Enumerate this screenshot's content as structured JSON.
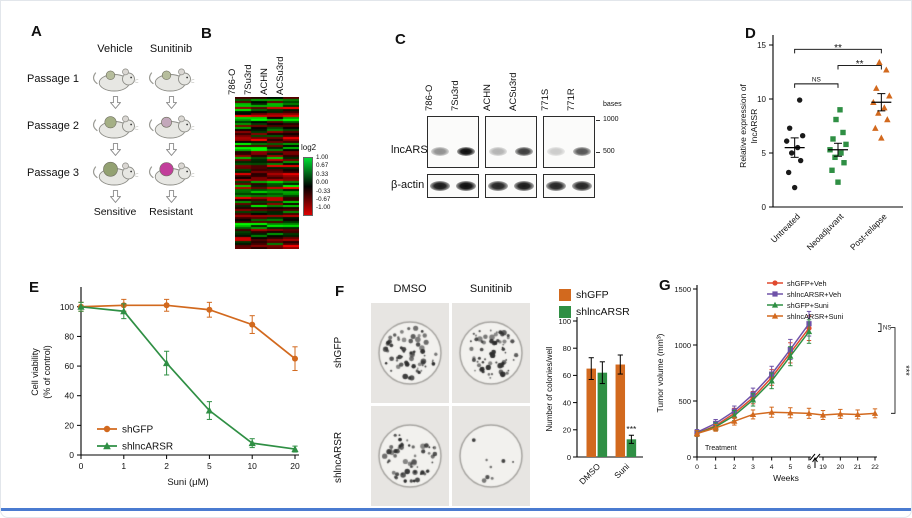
{
  "figure": {
    "accent_color": "#4a7bd0"
  },
  "panels": {
    "A": {
      "label": "A",
      "col_headers": [
        "Vehicle",
        "Sunitinib"
      ],
      "passages": [
        "Passage 1",
        "Passage 2",
        "Passage 3"
      ],
      "footer": [
        "Sensitive",
        "Resistant"
      ],
      "mice": [
        [
          {
            "tumor": "#b6bd9c",
            "size": 3.2
          },
          {
            "tumor": "#b6bd9c",
            "size": 3.2
          }
        ],
        [
          {
            "tumor": "#a4af85",
            "size": 4.2
          },
          {
            "tumor": "#c3a8bb",
            "size": 3.8
          }
        ],
        [
          {
            "tumor": "#93a172",
            "size": 5.2
          },
          {
            "tumor": "#c23e9b",
            "size": 5.0
          }
        ]
      ]
    },
    "B": {
      "label": "B",
      "columns": [
        "786-O",
        "7Su3rd",
        "ACHN",
        "ACSu3rd"
      ],
      "colorbar": {
        "title": "log2",
        "ticks": [
          "1.00",
          "0.67",
          "0.33",
          "0.00",
          "-0.33",
          "-0.67",
          "-1.00"
        ]
      }
    },
    "C": {
      "label": "C",
      "lanes": [
        "786-O",
        "7Su3rd",
        "ACHN",
        "ACSu3rd",
        "771S",
        "771R"
      ],
      "row_labels": [
        "lncARSR",
        "β-actin"
      ],
      "unit_label": "bases",
      "size_markers": [
        "1000",
        "500"
      ],
      "lncARSR_bands": [
        0.45,
        1.0,
        0.3,
        0.8,
        0.2,
        0.7
      ],
      "actin_bands": [
        0.95,
        1.0,
        0.9,
        0.95,
        0.9,
        0.9
      ]
    },
    "D": {
      "label": "D"
    },
    "E": {
      "label": "E"
    },
    "F": {
      "label": "F",
      "col_headers": [
        "DMSO",
        "Sunitinib"
      ],
      "row_labels": [
        "shGFP",
        "shlncARSR"
      ],
      "wells": [
        {
          "row": 0,
          "col": 0,
          "colonies": 62,
          "seed": 7
        },
        {
          "row": 0,
          "col": 1,
          "colonies": 66,
          "seed": 19
        },
        {
          "row": 1,
          "col": 0,
          "colonies": 58,
          "seed": 31
        },
        {
          "row": 1,
          "col": 1,
          "colonies": 8,
          "seed": 43
        }
      ]
    },
    "G": {
      "label": "G"
    }
  },
  "chart_data": [
    {
      "panel": "B",
      "type": "heatmap",
      "columns": [
        "786-O",
        "7Su3rd",
        "ACHN",
        "ACSu3rd"
      ],
      "rows": 76,
      "value_range": [
        -1,
        1
      ],
      "seed": 20,
      "colorbar": {
        "title": "log2",
        "ticks": [
          1.0,
          0.67,
          0.33,
          0.0,
          -0.33,
          -0.67,
          -1.0
        ],
        "high_color": "#00dd33",
        "mid_color": "#000000",
        "low_color": "#dd0000"
      }
    },
    {
      "panel": "D",
      "type": "scatter",
      "ylabel_lines": [
        "Relative expression of",
        "lncARSR"
      ],
      "ylim": [
        0,
        15
      ],
      "yticks": [
        0,
        5,
        10,
        15
      ],
      "groups": [
        {
          "name": "Untreated",
          "marker": "circle",
          "color": "#1a1a1a",
          "mean": 5.5,
          "sem": 0.9,
          "points": [
            1.8,
            3.2,
            4.3,
            5.0,
            5.5,
            6.1,
            6.6,
            7.3,
            9.9
          ]
        },
        {
          "name": "Neoadjuvant",
          "marker": "square",
          "color": "#2f8f44",
          "mean": 5.3,
          "sem": 0.6,
          "points": [
            2.3,
            3.4,
            4.1,
            4.6,
            5.0,
            5.3,
            5.8,
            6.3,
            6.9,
            8.1,
            9.0
          ]
        },
        {
          "name": "Post-relapse",
          "marker": "triangle",
          "color": "#d2691e",
          "mean": 9.7,
          "sem": 0.8,
          "points": [
            6.4,
            7.3,
            8.1,
            8.7,
            9.2,
            9.7,
            10.3,
            11.0,
            12.7,
            13.4
          ]
        }
      ],
      "significance": [
        {
          "from": 0,
          "to": 1,
          "label": "NS",
          "y": 11.4
        },
        {
          "from": 1,
          "to": 2,
          "label": "**",
          "y": 13.1
        },
        {
          "from": 0,
          "to": 2,
          "label": "**",
          "y": 14.6
        }
      ]
    },
    {
      "panel": "E",
      "type": "line",
      "xlabel": "Suni (μM)",
      "ylabel_lines": [
        "Cell viability",
        "(% of control)"
      ],
      "categories": [
        "0",
        "1",
        "2",
        "5",
        "10",
        "20"
      ],
      "ylim": [
        0,
        112
      ],
      "yticks": [
        0,
        20,
        40,
        60,
        80,
        100
      ],
      "series": [
        {
          "name": "shGFP",
          "color": "#d2691e",
          "marker": "circle",
          "values": [
            100,
            101,
            101,
            98,
            88,
            65
          ],
          "errors": [
            3,
            4,
            4,
            5,
            6,
            8
          ]
        },
        {
          "name": "shlncARSR",
          "color": "#2f8f44",
          "marker": "triangle",
          "values": [
            100,
            97,
            62,
            30,
            8,
            4
          ],
          "errors": [
            3,
            5,
            8,
            6,
            3,
            2
          ]
        }
      ],
      "legend_position": "bottom-left"
    },
    {
      "panel": "F",
      "type": "bar",
      "ylabel": "Number of colonies/well",
      "categories": [
        "DMSO",
        "Suni"
      ],
      "ylim": [
        0,
        100
      ],
      "yticks": [
        0,
        20,
        40,
        60,
        80,
        100
      ],
      "series": [
        {
          "name": "shGFP",
          "color": "#d2691e",
          "values": [
            65,
            68
          ],
          "errors": [
            8,
            7
          ]
        },
        {
          "name": "shlncARSR",
          "color": "#2f8f44",
          "values": [
            62,
            13
          ],
          "errors": [
            8,
            3
          ]
        }
      ],
      "annotations": [
        {
          "category_index": 1,
          "series_index": 1,
          "label": "***"
        }
      ]
    },
    {
      "panel": "G",
      "type": "line",
      "xlabel": "Weeks",
      "ylabel": "Tumor volume (mm³)",
      "ylim": [
        0,
        1500
      ],
      "yticks": [
        0,
        500,
        1000,
        1500
      ],
      "xticks": [
        0,
        1,
        2,
        3,
        4,
        5,
        6,
        19,
        20,
        21,
        22
      ],
      "axis_break": [
        6,
        19
      ],
      "annotations": {
        "treatment_label": "Treatment",
        "significance": [
          "NS",
          "***"
        ]
      },
      "series": [
        {
          "name": "shGFP+Veh",
          "color": "#e0492e",
          "marker": "circle",
          "x": [
            0,
            1,
            2,
            3,
            4,
            5,
            6
          ],
          "values": [
            210,
            280,
            390,
            530,
            710,
            930,
            1150
          ],
          "errors": [
            25,
            35,
            45,
            55,
            70,
            90,
            110
          ]
        },
        {
          "name": "shlncARSR+Veh",
          "color": "#6f52a8",
          "marker": "square",
          "x": [
            0,
            1,
            2,
            3,
            4,
            5,
            6
          ],
          "values": [
            220,
            300,
            410,
            560,
            740,
            960,
            1190
          ],
          "errors": [
            25,
            35,
            45,
            55,
            70,
            90,
            110
          ]
        },
        {
          "name": "shGFP+Suni",
          "color": "#2f8f44",
          "marker": "triangle",
          "x": [
            0,
            1,
            2,
            3,
            4,
            5,
            6
          ],
          "values": [
            210,
            270,
            370,
            510,
            680,
            900,
            1120
          ],
          "errors": [
            25,
            35,
            45,
            55,
            70,
            85,
            105
          ]
        },
        {
          "name": "shlncARSR+Suni",
          "color": "#d2691e",
          "marker": "triangle",
          "x": [
            0,
            1,
            2,
            3,
            4,
            5,
            6,
            19,
            20,
            21,
            22
          ],
          "values": [
            210,
            260,
            320,
            380,
            400,
            395,
            390,
            375,
            385,
            380,
            390
          ],
          "errors": [
            25,
            30,
            35,
            40,
            45,
            45,
            45,
            40,
            40,
            40,
            40
          ]
        }
      ]
    }
  ]
}
